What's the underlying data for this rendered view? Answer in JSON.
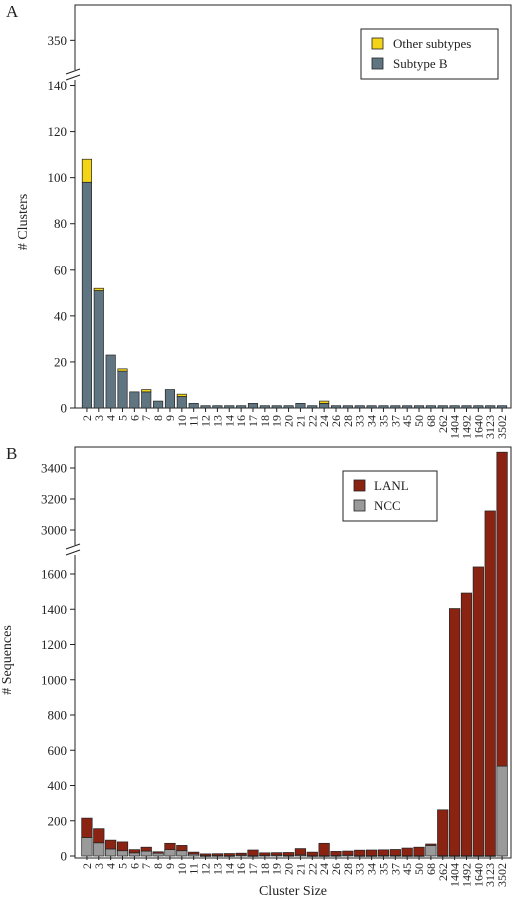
{
  "chart_data": [
    {
      "type": "bar",
      "stacked": true,
      "panel_label": "A",
      "ylabel": "# Clusters",
      "xlabel": "",
      "categories": [
        "2",
        "3",
        "4",
        "5",
        "6",
        "7",
        "8",
        "9",
        "10",
        "11",
        "12",
        "13",
        "14",
        "16",
        "17",
        "18",
        "19",
        "20",
        "21",
        "22",
        "24",
        "26",
        "28",
        "33",
        "34",
        "35",
        "37",
        "45",
        "50",
        "68",
        "262",
        "1404",
        "1492",
        "1640",
        "3123",
        "3502"
      ],
      "axis_breaks": [
        [
          145,
          345
        ]
      ],
      "yticks": [
        0,
        20,
        40,
        60,
        80,
        100,
        120,
        140,
        350
      ],
      "ylim": [
        0,
        360
      ],
      "legend": "top-right",
      "series": [
        {
          "name": "Subtype B",
          "color": "#5f7581",
          "values": [
            98,
            51,
            23,
            16,
            7,
            7,
            3,
            8,
            5,
            2,
            1,
            1,
            1,
            1,
            2,
            1,
            1,
            1,
            2,
            1,
            2,
            1,
            1,
            1,
            1,
            1,
            1,
            1,
            1,
            1,
            1,
            1,
            1,
            1,
            1,
            1
          ]
        },
        {
          "name": "Other subtypes",
          "color": "#f3d417",
          "values": [
            10,
            1,
            0,
            1,
            0,
            1,
            0,
            0,
            1,
            0,
            0,
            0,
            0,
            0,
            0,
            0,
            0,
            0,
            0,
            0,
            1,
            0,
            0,
            0,
            0,
            0,
            0,
            0,
            0,
            0,
            0,
            0,
            0,
            0,
            0,
            0
          ]
        }
      ]
    },
    {
      "type": "bar",
      "stacked": true,
      "panel_label": "B",
      "ylabel": "# Sequences",
      "xlabel": "Cluster Size",
      "categories": [
        "2",
        "3",
        "4",
        "5",
        "6",
        "7",
        "8",
        "9",
        "10",
        "11",
        "12",
        "13",
        "14",
        "16",
        "17",
        "18",
        "19",
        "20",
        "21",
        "22",
        "24",
        "26",
        "28",
        "33",
        "34",
        "35",
        "37",
        "45",
        "50",
        "68",
        "262",
        "1404",
        "1492",
        "1640",
        "3123",
        "3502"
      ],
      "axis_breaks": [
        [
          1750,
          2900
        ]
      ],
      "yticks": [
        0,
        200,
        400,
        600,
        800,
        1000,
        1200,
        1400,
        1600,
        3000,
        3200,
        3400
      ],
      "ylim": [
        0,
        3550
      ],
      "legend": "top-right",
      "series": [
        {
          "name": "NCC",
          "color": "#9a9a9a",
          "values": [
            105,
            75,
            40,
            30,
            18,
            28,
            16,
            36,
            30,
            11,
            2,
            3,
            2,
            5,
            2,
            4,
            5,
            3,
            6,
            2,
            2,
            3,
            5,
            2,
            2,
            3,
            3,
            2,
            2,
            60,
            2,
            2,
            2,
            2,
            2,
            510
          ]
        },
        {
          "name": "LANL",
          "color": "#8b2313",
          "values": [
            110,
            80,
            50,
            50,
            18,
            22,
            8,
            36,
            30,
            11,
            10,
            10,
            12,
            11,
            32,
            14,
            14,
            17,
            36,
            20,
            70,
            23,
            23,
            31,
            32,
            32,
            34,
            43,
            48,
            8,
            260,
            1402,
            1490,
            1638,
            3121,
            2992
          ]
        }
      ]
    }
  ]
}
